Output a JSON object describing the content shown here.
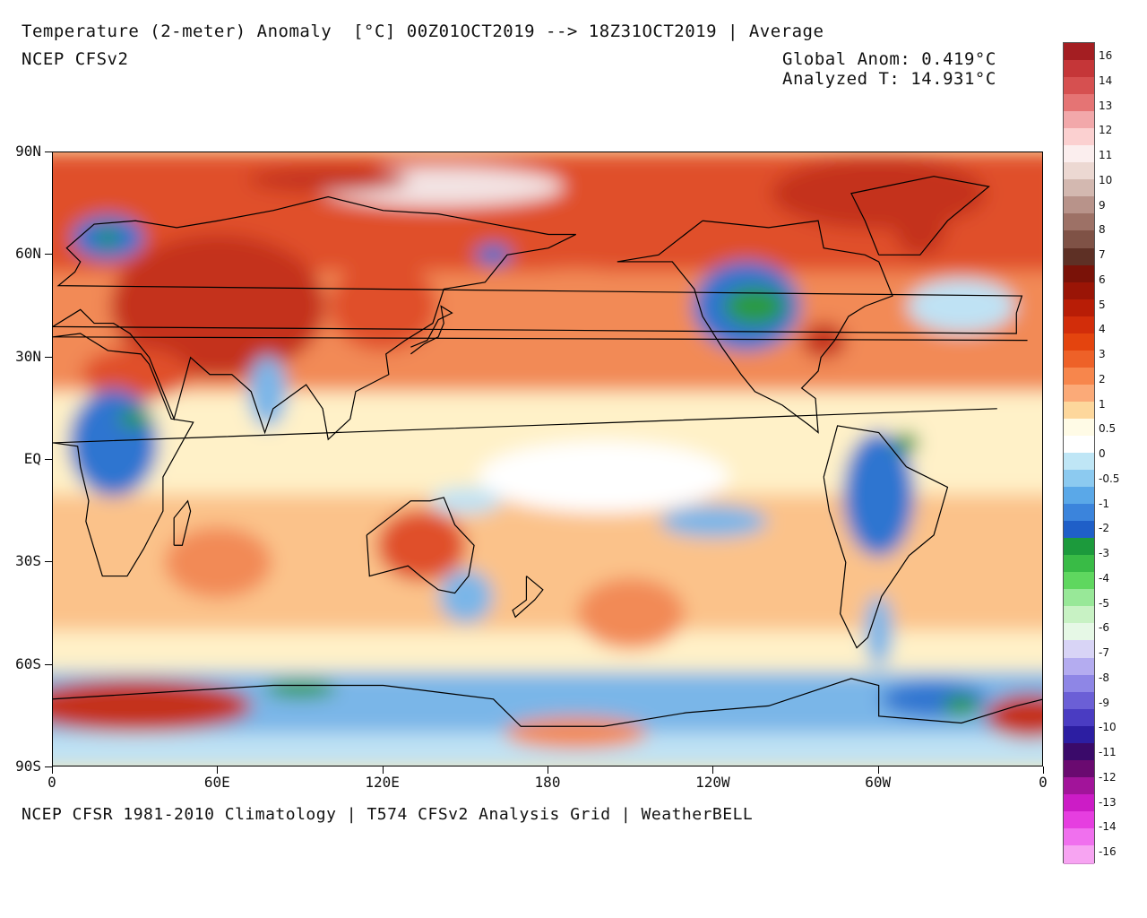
{
  "header": {
    "title": "Temperature (2-meter) Anomaly  [°C] 00Z01OCT2019 --> 18Z31OCT2019 | Average",
    "model": "NCEP CFSv2",
    "global_anom": "Global Anom: 0.419°C",
    "analyzed_t": "Analyzed T: 14.931°C"
  },
  "footer": "NCEP CFSR 1981-2010 Climatology | T574 CFSv2 Analysis Grid | WeatherBELL",
  "axes": {
    "y_labels": [
      "90N",
      "60N",
      "30N",
      "EQ",
      "30S",
      "60S",
      "90S"
    ],
    "x_labels": [
      "0",
      "60E",
      "120E",
      "180",
      "120W",
      "60W",
      "0"
    ]
  },
  "legend": {
    "labels": [
      "16",
      "14",
      "13",
      "12",
      "11",
      "10",
      "9",
      "8",
      "7",
      "6",
      "5",
      "4",
      "3",
      "2",
      "1",
      "0.5",
      "0",
      "-0.5",
      "-1",
      "-2",
      "-3",
      "-4",
      "-5",
      "-6",
      "-7",
      "-8",
      "-9",
      "-10",
      "-11",
      "-12",
      "-13",
      "-14",
      "-16"
    ],
    "colors": [
      "#a41e22",
      "#c53638",
      "#d65050",
      "#e57474",
      "#f2a8aa",
      "#fbd0d0",
      "#fbeeee",
      "#ecd8d2",
      "#d3b8b0",
      "#b8938a",
      "#9d7166",
      "#7f5246",
      "#5e3025",
      "#7a1208",
      "#9a1506",
      "#b81d06",
      "#d22d0a",
      "#e4440e",
      "#ee6128",
      "#f7864c",
      "#fbaa78",
      "#fdd79c",
      "#fffbe6",
      "#ffffff",
      "#bfe6f6",
      "#8ccaf0",
      "#5aa8e8",
      "#3b84dc",
      "#1f5fc8",
      "#1c9a3c",
      "#39bb46",
      "#5fd75f",
      "#98e898",
      "#c8f2c4",
      "#e6f8e6",
      "#d8d4f6",
      "#b4acf0",
      "#8e86e6",
      "#6b5fd6",
      "#4a3cc2",
      "#2c1ea2",
      "#3a0a6a",
      "#6a0a70",
      "#a2149a",
      "#cc1cc6",
      "#e63ee0",
      "#f070ee",
      "#f7a4f2"
    ]
  },
  "map_colors": {
    "ocean_neutral": "#fff1c8",
    "warm_light": "#fbc28a",
    "warm": "#f28a56",
    "warm_strong": "#e0502a",
    "hot": "#c4301a",
    "extreme_hot": "#f3e3e3",
    "cool_light": "#bfe2f4",
    "cool": "#7ab6e8",
    "cold": "#2f74d0",
    "very_cold": "#2a9a42",
    "neutral": "#ffffff",
    "coast": "#000000"
  }
}
